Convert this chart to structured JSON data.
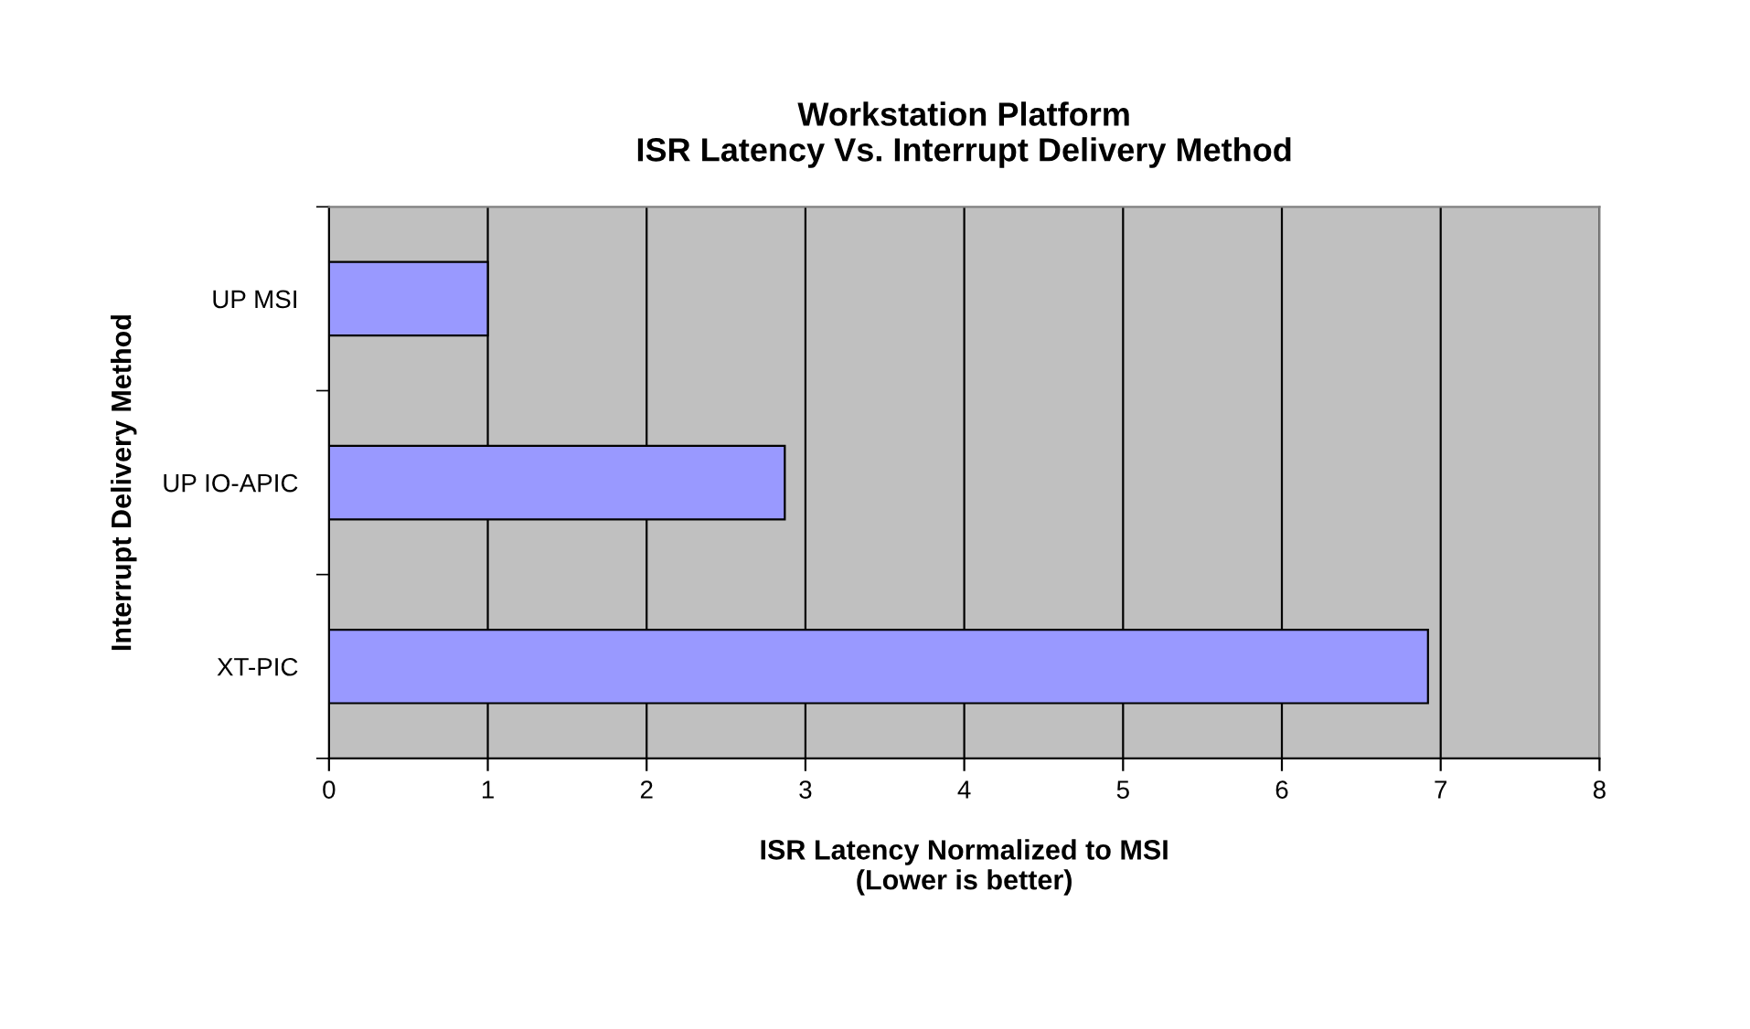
{
  "chart_data": {
    "type": "bar",
    "orientation": "horizontal",
    "title": "Workstation Platform\nISR Latency Vs. Interrupt Delivery Method",
    "xlabel": "ISR Latency Normalized to MSI\n(Lower is better)",
    "ylabel": "Interrupt Delivery Method",
    "categories": [
      "UP MSI",
      "UP IO-APIC",
      "XT-PIC"
    ],
    "values": [
      1,
      2.87,
      6.92
    ],
    "color": "#9999ff",
    "xlim": [
      0,
      8
    ],
    "xticks": [
      0,
      1,
      2,
      3,
      4,
      5,
      6,
      7,
      8
    ],
    "grid": "x",
    "legend": false
  }
}
